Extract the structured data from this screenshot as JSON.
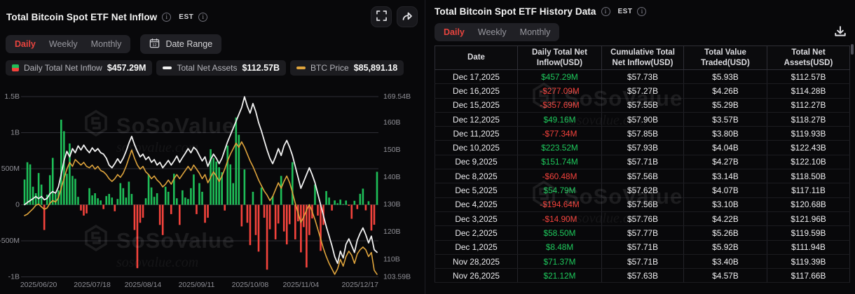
{
  "watermark": {
    "brand": "SoSoValue",
    "domain": "sosovalue.com"
  },
  "colors": {
    "accent_red": "#e8443e",
    "positive_green": "#1ec95c",
    "negative_red": "#f4423c",
    "bar_green": "#1ebe58",
    "bar_red": "#f4433c",
    "net_assets_line": "#f2f2f2",
    "btc_price_line": "#dfa43c",
    "grid": "#2e2e35",
    "axis_text": "#8f8f96"
  },
  "left_panel": {
    "title": "Total Bitcoin Spot ETF Net Inflow",
    "est_label": "EST",
    "tabs": [
      "Daily",
      "Weekly",
      "Monthly"
    ],
    "active_tab": "Daily",
    "date_range_label": "Date Range",
    "date_range_icon_day": "12",
    "legend": [
      {
        "label": "Daily Total Net Inflow",
        "value": "$457.29M",
        "icon": "split-green-red-square"
      },
      {
        "label": "Total Net Assets",
        "value": "$112.57B",
        "icon": "white-dash"
      },
      {
        "label": "BTC Price",
        "value": "$85,891.18",
        "icon": "orange-dash"
      }
    ],
    "chart_data": {
      "type": "combo-bar-line",
      "x_axis": {
        "ticks": [
          {
            "label": "2025/06/20",
            "i": 5
          },
          {
            "label": "2025/07/18",
            "i": 24
          },
          {
            "label": "2025/08/14",
            "i": 42
          },
          {
            "label": "2025/09/11",
            "i": 61
          },
          {
            "label": "2025/10/08",
            "i": 80
          },
          {
            "label": "2025/11/04",
            "i": 98
          },
          {
            "label": "2025/12/17",
            "i": 125,
            "anchor": "end"
          }
        ]
      },
      "y_left": {
        "units": "USD millions",
        "ticks": [
          {
            "label": "1.5B",
            "v": 1500
          },
          {
            "label": "1B",
            "v": 1000
          },
          {
            "label": "500M",
            "v": 500
          },
          {
            "label": "0",
            "v": 0
          },
          {
            "label": "-500M",
            "v": -500
          },
          {
            "label": "-1B",
            "v": -1000
          }
        ]
      },
      "y_right": {
        "units": "USD billions",
        "min": 103.59,
        "max": 169.54,
        "ticks": [
          {
            "label": "169.54B",
            "v": 169.54
          },
          {
            "label": "160B",
            "v": 160
          },
          {
            "label": "150B",
            "v": 150
          },
          {
            "label": "140B",
            "v": 140
          },
          {
            "label": "130B",
            "v": 130
          },
          {
            "label": "120B",
            "v": 120
          },
          {
            "label": "110B",
            "v": 110
          },
          {
            "label": "103.59B",
            "v": 103.59
          }
        ]
      },
      "series": {
        "daily_net_inflow_musd": [
          350,
          590,
          560,
          250,
          160,
          440,
          280,
          -350,
          140,
          410,
          650,
          150,
          200,
          1180,
          1020,
          430,
          850,
          400,
          360,
          110,
          -80,
          -150,
          -120,
          230,
          130,
          160,
          90,
          60,
          -60,
          120,
          150,
          100,
          -90,
          80,
          300,
          230,
          100,
          320,
          150,
          -350,
          -880,
          -250,
          -180,
          90,
          420,
          240,
          110,
          160,
          -280,
          -420,
          250,
          180,
          -130,
          430,
          90,
          -280,
          200,
          100,
          80,
          230,
          420,
          -130,
          300,
          180,
          -250,
          -180,
          770,
          650,
          600,
          520,
          450,
          -80,
          820,
          560,
          300,
          1210,
          970,
          -300,
          490,
          -250,
          -560,
          180,
          -420,
          -650,
          240,
          -180,
          -900,
          -340,
          120,
          -480,
          -260,
          400,
          -370,
          -550,
          -270,
          590,
          -480,
          -230,
          -660,
          -310,
          -870,
          -420,
          -190,
          280,
          -150,
          -640,
          -280,
          190,
          100,
          -80,
          60,
          21.12,
          71.37,
          8.48,
          58.5,
          -14.9,
          -194.64,
          54.79,
          -60.48,
          151.74,
          223.52,
          -77.34,
          49.16,
          -357.69,
          -277.09,
          457.29
        ],
        "total_net_assets_busd": [
          130,
          130.8,
          131.5,
          132.2,
          133,
          132.2,
          133,
          131.8,
          132.3,
          134,
          134.8,
          134.2,
          136.5,
          141,
          146,
          149.5,
          147.5,
          150.5,
          149,
          151.5,
          150,
          151.8,
          150.2,
          149,
          150.8,
          149.5,
          150.5,
          149,
          148.5,
          147,
          144.5,
          143.5,
          145,
          146.8,
          145.2,
          147,
          149.5,
          152.5,
          155,
          152,
          149.5,
          147.5,
          148.5,
          146.5,
          147.5,
          145.5,
          146.5,
          144.5,
          145.5,
          143.5,
          144.8,
          146.2,
          144.5,
          146,
          147.8,
          145.5,
          147.2,
          148.8,
          150.5,
          149,
          151,
          150,
          148,
          146,
          147.5,
          144,
          146.5,
          148.5,
          147,
          145,
          147,
          150,
          153,
          155.5,
          158,
          160.5,
          163,
          165.5,
          169.5,
          166,
          163.5,
          167,
          164,
          160,
          157,
          153.5,
          150,
          147,
          145,
          147.5,
          150.5,
          148,
          151.5,
          153.5,
          151,
          148,
          144,
          140,
          136,
          138.5,
          141,
          143.5,
          141,
          138,
          134,
          130,
          126,
          122,
          118.5,
          115,
          111,
          108.5,
          113,
          110.5,
          115.5,
          117.5,
          115,
          112.5,
          117,
          119.5,
          121.5,
          119,
          116,
          118.5,
          113.5,
          112.57
        ],
        "btc_price_line_right_axis_equivalent_busd": [
          126,
          126.5,
          127.5,
          128.5,
          129.8,
          130.2,
          129.2,
          128.3,
          128.8,
          130.5,
          131.5,
          131,
          132.5,
          136,
          139.5,
          143,
          145.5,
          144,
          146.5,
          145.5,
          144.5,
          145.5,
          144,
          143.5,
          144.5,
          143,
          144,
          142.5,
          142,
          141,
          139.5,
          138.5,
          139.5,
          141,
          140,
          141.5,
          144,
          147,
          150,
          147,
          144.5,
          143,
          144,
          142,
          141,
          139.5,
          140.5,
          139,
          138,
          136.5,
          137.5,
          139,
          137.5,
          139.5,
          141,
          139.5,
          141,
          142.5,
          144,
          142.5,
          144.5,
          143,
          141.5,
          139.5,
          141,
          138,
          140,
          142,
          140.5,
          138.5,
          140.5,
          143,
          146,
          148.5,
          150.5,
          152.5,
          151,
          153,
          151,
          148.5,
          146,
          144,
          141.5,
          139,
          137,
          135,
          133.5,
          131.5,
          133,
          135.5,
          138,
          136,
          138.5,
          140.5,
          138,
          134.5,
          130.5,
          127,
          123.5,
          125.5,
          128,
          130,
          127.5,
          124.5,
          121,
          117.5,
          114,
          111,
          108.5,
          106.5,
          104.5,
          106.5,
          110,
          107.5,
          111,
          113,
          111.5,
          108.5,
          112,
          113.5,
          114.5,
          113.5,
          111,
          112.5,
          106,
          104.5
        ]
      },
      "note": "bar/line series estimated from chart pixels; final 15 bars match table values"
    }
  },
  "right_panel": {
    "title": "Total Bitcoin Spot ETF History Data",
    "est_label": "EST",
    "tabs": [
      "Daily",
      "Weekly",
      "Monthly"
    ],
    "active_tab": "Daily",
    "table": {
      "columns": [
        "Date",
        "Daily Total Net Inflow(USD)",
        "Cumulative Total Net Inflow(USD)",
        "Total Value Traded(USD)",
        "Total Net Assets(USD)"
      ],
      "rows": [
        {
          "date": "Dec 17,2025",
          "daily_net_inflow": "$457.29M",
          "cumulative_net_inflow": "$57.73B",
          "value_traded": "$5.93B",
          "net_assets": "$112.57B"
        },
        {
          "date": "Dec 16,2025",
          "daily_net_inflow": "-$277.09M",
          "cumulative_net_inflow": "$57.27B",
          "value_traded": "$4.26B",
          "net_assets": "$114.28B"
        },
        {
          "date": "Dec 15,2025",
          "daily_net_inflow": "-$357.69M",
          "cumulative_net_inflow": "$57.55B",
          "value_traded": "$5.29B",
          "net_assets": "$112.27B"
        },
        {
          "date": "Dec 12,2025",
          "daily_net_inflow": "$49.16M",
          "cumulative_net_inflow": "$57.90B",
          "value_traded": "$3.57B",
          "net_assets": "$118.27B"
        },
        {
          "date": "Dec 11,2025",
          "daily_net_inflow": "-$77.34M",
          "cumulative_net_inflow": "$57.85B",
          "value_traded": "$3.80B",
          "net_assets": "$119.93B"
        },
        {
          "date": "Dec 10,2025",
          "daily_net_inflow": "$223.52M",
          "cumulative_net_inflow": "$57.93B",
          "value_traded": "$4.04B",
          "net_assets": "$122.43B"
        },
        {
          "date": "Dec 9,2025",
          "daily_net_inflow": "$151.74M",
          "cumulative_net_inflow": "$57.71B",
          "value_traded": "$4.27B",
          "net_assets": "$122.10B"
        },
        {
          "date": "Dec 8,2025",
          "daily_net_inflow": "-$60.48M",
          "cumulative_net_inflow": "$57.56B",
          "value_traded": "$3.14B",
          "net_assets": "$118.50B"
        },
        {
          "date": "Dec 5,2025",
          "daily_net_inflow": "$54.79M",
          "cumulative_net_inflow": "$57.62B",
          "value_traded": "$4.07B",
          "net_assets": "$117.11B"
        },
        {
          "date": "Dec 4,2025",
          "daily_net_inflow": "-$194.64M",
          "cumulative_net_inflow": "$57.56B",
          "value_traded": "$3.10B",
          "net_assets": "$120.68B"
        },
        {
          "date": "Dec 3,2025",
          "daily_net_inflow": "-$14.90M",
          "cumulative_net_inflow": "$57.76B",
          "value_traded": "$4.22B",
          "net_assets": "$121.96B"
        },
        {
          "date": "Dec 2,2025",
          "daily_net_inflow": "$58.50M",
          "cumulative_net_inflow": "$57.77B",
          "value_traded": "$5.26B",
          "net_assets": "$119.59B"
        },
        {
          "date": "Dec 1,2025",
          "daily_net_inflow": "$8.48M",
          "cumulative_net_inflow": "$57.71B",
          "value_traded": "$5.92B",
          "net_assets": "$111.94B"
        },
        {
          "date": "Nov 28,2025",
          "daily_net_inflow": "$71.37M",
          "cumulative_net_inflow": "$57.71B",
          "value_traded": "$3.40B",
          "net_assets": "$119.39B"
        },
        {
          "date": "Nov 26,2025",
          "daily_net_inflow": "$21.12M",
          "cumulative_net_inflow": "$57.63B",
          "value_traded": "$4.57B",
          "net_assets": "$117.66B"
        }
      ]
    }
  }
}
